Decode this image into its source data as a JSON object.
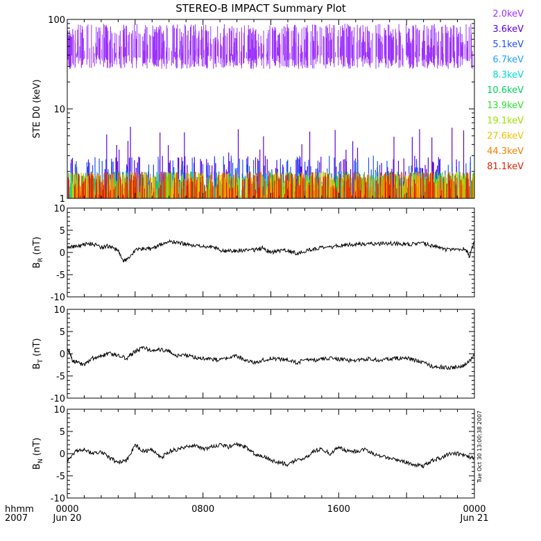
{
  "title": "STEREO-B IMPACT Summary Plot",
  "timestamp": "Tue Oct 30 13:00:38 2007",
  "time_axis": {
    "row1_label": "hhmm",
    "row2_label": "2007",
    "ticks": [
      {
        "hours": 0,
        "label": "0000",
        "sublabel": "Jun 20"
      },
      {
        "hours": 8,
        "label": "0800",
        "sublabel": ""
      },
      {
        "hours": 16,
        "label": "1600",
        "sublabel": ""
      },
      {
        "hours": 24,
        "label": "0000",
        "sublabel": "Jun 21"
      }
    ],
    "range_hours": [
      0,
      24
    ]
  },
  "chart_data": [
    {
      "type": "line",
      "panel": "ste",
      "ylabel": "STE D0 (keV)",
      "yscale": "log",
      "ylim": [
        1,
        100
      ],
      "yticks": [
        {
          "v": 1,
          "label": "1"
        },
        {
          "v": 10,
          "label": "10"
        },
        {
          "v": 100,
          "label": "100"
        }
      ],
      "series": [
        {
          "name": "2.0keV",
          "color": "#9b30ff",
          "typical_range": [
            40,
            85
          ]
        },
        {
          "name": "3.6keV",
          "color": "#5a00e0",
          "typical_range": [
            1,
            3
          ]
        },
        {
          "name": "5.1keV",
          "color": "#1e4fff",
          "typical_range": [
            1,
            3
          ]
        },
        {
          "name": "6.7keV",
          "color": "#1ea0ff",
          "typical_range": [
            1,
            2
          ]
        },
        {
          "name": "8.3keV",
          "color": "#00d8d8",
          "typical_range": [
            1,
            2
          ]
        },
        {
          "name": "10.6keV",
          "color": "#00d060",
          "typical_range": [
            1,
            2
          ]
        },
        {
          "name": "13.9keV",
          "color": "#30e030",
          "typical_range": [
            1,
            2
          ]
        },
        {
          "name": "19.1keV",
          "color": "#a0e000",
          "typical_range": [
            1,
            2
          ]
        },
        {
          "name": "27.6keV",
          "color": "#f0c000",
          "typical_range": [
            1,
            2
          ]
        },
        {
          "name": "44.3keV",
          "color": "#f08000",
          "typical_range": [
            1,
            2
          ]
        },
        {
          "name": "81.1keV",
          "color": "#e02000",
          "typical_range": [
            1,
            2
          ]
        }
      ]
    },
    {
      "type": "line",
      "panel": "br",
      "ylabel": "BR (nT)",
      "ylim": [
        -10,
        10
      ],
      "yticks": [
        {
          "v": 10,
          "label": "10"
        },
        {
          "v": 5,
          "label": "5"
        },
        {
          "v": 0,
          "label": "0"
        },
        {
          "v": -5,
          "label": "-5"
        },
        {
          "v": -10,
          "label": "-10"
        }
      ],
      "series": [
        {
          "x_hours": [
            0,
            0.5,
            1,
            1.5,
            2,
            2.5,
            3,
            3.3,
            3.6,
            4,
            4.5,
            5,
            5.5,
            6,
            6.5,
            7,
            7.5,
            8,
            8.5,
            9,
            9.5,
            10,
            10.5,
            11,
            11.5,
            12,
            12.5,
            13,
            13.5,
            14,
            14.5,
            15,
            15.5,
            16,
            16.5,
            17,
            17.5,
            18,
            18.5,
            19,
            19.5,
            20,
            20.5,
            21,
            21.5,
            22,
            22.5,
            23,
            23.5,
            23.7,
            24
          ],
          "values": [
            1.5,
            1.2,
            1.8,
            2.0,
            1.2,
            1.5,
            0.5,
            -2.0,
            -1.5,
            0.5,
            1.0,
            0.8,
            1.8,
            2.5,
            2.2,
            1.8,
            1.5,
            1.2,
            1.5,
            0.5,
            0.3,
            0.4,
            0.6,
            0.5,
            1.0,
            0.0,
            0.3,
            0.5,
            -0.2,
            0.3,
            0.8,
            1.0,
            1.2,
            1.5,
            1.8,
            1.8,
            1.9,
            2.0,
            2.0,
            2.1,
            2.0,
            1.8,
            1.9,
            2.0,
            1.5,
            1.0,
            0.5,
            0.6,
            0.8,
            -1.0,
            2.5
          ]
        }
      ]
    },
    {
      "type": "line",
      "panel": "bt",
      "ylabel": "BT (nT)",
      "ylim": [
        -10,
        10
      ],
      "yticks": [
        {
          "v": 10,
          "label": "10"
        },
        {
          "v": 5,
          "label": "5"
        },
        {
          "v": 0,
          "label": "0"
        },
        {
          "v": -5,
          "label": "-5"
        },
        {
          "v": -10,
          "label": "-10"
        }
      ],
      "series": [
        {
          "x_hours": [
            0,
            0.3,
            0.6,
            1,
            1.5,
            2,
            2.5,
            3,
            3.5,
            4,
            4.5,
            5,
            5.5,
            6,
            6.5,
            7,
            7.5,
            8,
            8.5,
            9,
            9.5,
            10,
            10.5,
            11,
            11.5,
            12,
            12.5,
            13,
            13.5,
            14,
            14.5,
            15,
            15.5,
            16,
            16.5,
            17,
            17.5,
            18,
            18.5,
            19,
            19.5,
            20,
            20.5,
            21,
            21.5,
            22,
            22.5,
            23,
            23.5,
            24
          ],
          "values": [
            1.5,
            -1.5,
            -2.0,
            -2.5,
            -1.0,
            -0.5,
            0.0,
            -0.5,
            -1.0,
            0.5,
            1.5,
            0.5,
            1.0,
            0.5,
            -0.5,
            -0.3,
            -0.8,
            -1.0,
            -1.2,
            -1.5,
            -1.0,
            -0.5,
            -1.5,
            -2.0,
            -1.5,
            -1.0,
            -1.2,
            -1.5,
            -2.0,
            -1.5,
            -1.5,
            -1.2,
            -1.0,
            -1.2,
            -1.5,
            -1.5,
            -1.2,
            -1.2,
            -1.5,
            -1.2,
            -1.0,
            -1.0,
            -1.5,
            -2.0,
            -2.8,
            -3.0,
            -3.2,
            -3.0,
            -2.5,
            -0.5
          ]
        }
      ]
    },
    {
      "type": "line",
      "panel": "bn",
      "ylabel": "BN (nT)",
      "ylim": [
        -10,
        10
      ],
      "yticks": [
        {
          "v": 10,
          "label": "10"
        },
        {
          "v": 5,
          "label": "5"
        },
        {
          "v": 0,
          "label": "0"
        },
        {
          "v": -5,
          "label": "-5"
        },
        {
          "v": -10,
          "label": "-10"
        }
      ],
      "series": [
        {
          "x_hours": [
            0,
            0.5,
            1,
            1.5,
            2,
            2.5,
            3,
            3.5,
            4,
            4.5,
            5,
            5.5,
            6,
            6.5,
            7,
            7.5,
            8,
            8.5,
            9,
            9.5,
            10,
            10.5,
            11,
            11.5,
            12,
            12.5,
            13,
            13.5,
            14,
            14.5,
            15,
            15.5,
            16,
            16.5,
            17,
            17.5,
            18,
            18.5,
            19,
            19.5,
            20,
            20.5,
            21,
            21.5,
            22,
            22.5,
            23,
            23.5,
            24
          ],
          "values": [
            -1.5,
            0.5,
            1.0,
            0.0,
            0.5,
            -1.0,
            -2.0,
            -1.5,
            2.0,
            0.5,
            1.0,
            -1.0,
            0.5,
            1.0,
            1.5,
            2.0,
            1.0,
            1.5,
            2.0,
            1.5,
            2.0,
            1.5,
            0.0,
            -0.5,
            -1.5,
            -2.0,
            -2.5,
            -1.5,
            -1.0,
            0.5,
            1.0,
            0.0,
            1.5,
            0.5,
            0.5,
            1.0,
            0.0,
            -0.5,
            -1.0,
            -1.5,
            -2.0,
            -2.5,
            -2.8,
            -1.5,
            -1.0,
            0.0,
            0.0,
            -0.5,
            -1.0
          ]
        }
      ]
    }
  ]
}
